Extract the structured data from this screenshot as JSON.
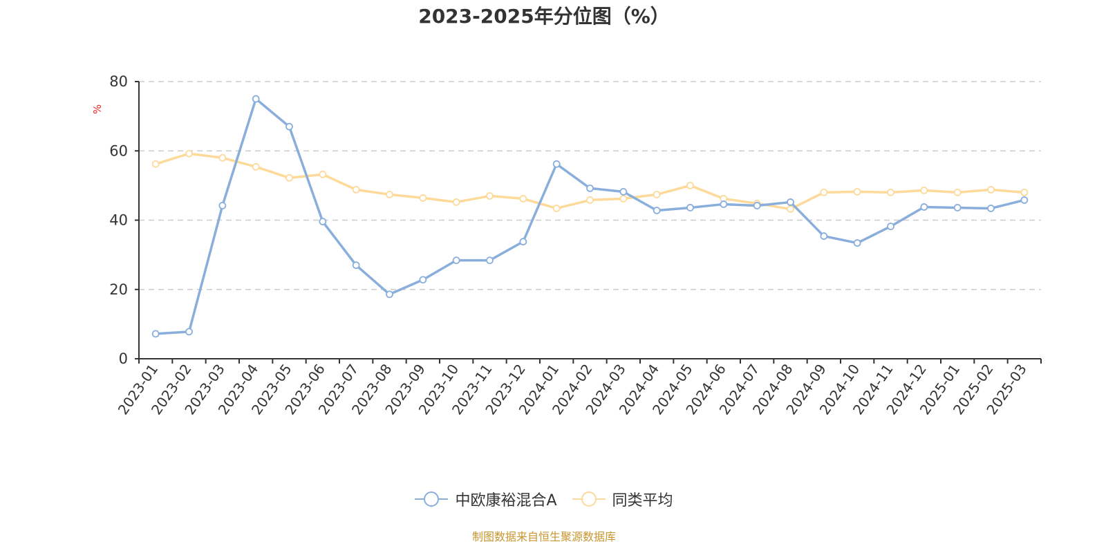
{
  "title": "2023-2025年分位图（%）",
  "y_unit": "%",
  "legend": [
    {
      "label": "中欧康裕混合A",
      "color": "#8aaedc"
    },
    {
      "label": "同类平均",
      "color": "#fdd99a"
    }
  ],
  "footer": "制图数据来自恒生聚源数据库",
  "chart_data": {
    "type": "line",
    "title": "2023-2025年分位图（%）",
    "xlabel": "",
    "ylabel": "%",
    "ylim": [
      0,
      80
    ],
    "yticks": [
      0,
      20,
      40,
      60,
      80
    ],
    "grid": true,
    "legend_position": "bottom",
    "categories": [
      "2023-01",
      "2023-02",
      "2023-03",
      "2023-04",
      "2023-05",
      "2023-06",
      "2023-07",
      "2023-08",
      "2023-09",
      "2023-10",
      "2023-11",
      "2023-12",
      "2024-01",
      "2024-02",
      "2024-03",
      "2024-04",
      "2024-05",
      "2024-06",
      "2024-07",
      "2024-08",
      "2024-09",
      "2024-10",
      "2024-11",
      "2024-12",
      "2025-01",
      "2025-02",
      "2025-03"
    ],
    "series": [
      {
        "name": "中欧康裕混合A",
        "color": "#8aaedc",
        "values": [
          7.2,
          7.8,
          44.2,
          75.0,
          67.0,
          39.6,
          27.0,
          18.6,
          22.8,
          28.4,
          28.4,
          33.8,
          56.2,
          49.2,
          48.2,
          42.8,
          43.6,
          44.6,
          44.2,
          45.2,
          35.4,
          33.4,
          38.2,
          43.8,
          43.6,
          43.4,
          45.8
        ]
      },
      {
        "name": "同类平均",
        "color": "#fdd99a",
        "values": [
          56.2,
          59.2,
          58.0,
          55.4,
          52.2,
          53.2,
          48.8,
          47.4,
          46.4,
          45.2,
          47.0,
          46.2,
          43.4,
          45.8,
          46.2,
          47.4,
          50.0,
          46.2,
          44.8,
          43.2,
          48.0,
          48.2,
          48.0,
          48.6,
          48.0,
          48.8,
          48.0
        ]
      }
    ]
  }
}
